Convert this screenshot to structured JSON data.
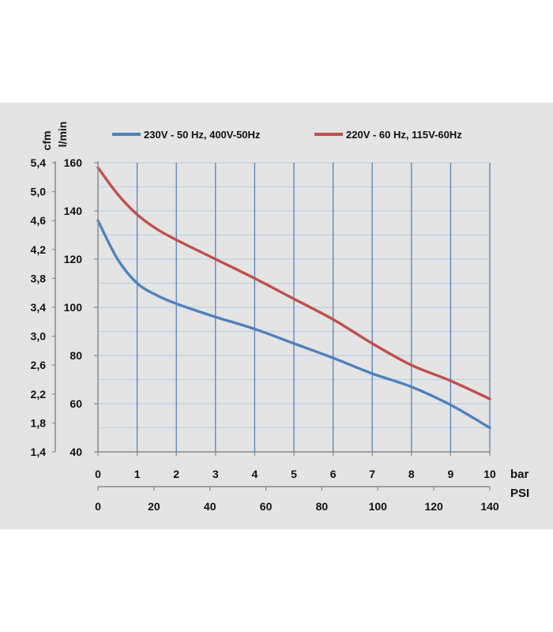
{
  "chart_data": {
    "type": "line",
    "axes": {
      "x_bar": {
        "label": "bar",
        "ticks": [
          "0",
          "1",
          "2",
          "3",
          "4",
          "5",
          "6",
          "7",
          "8",
          "9",
          "10"
        ],
        "range": [
          0,
          10
        ]
      },
      "x_psi": {
        "label": "PSI",
        "ticks": [
          "0",
          "20",
          "40",
          "60",
          "80",
          "100",
          "120",
          "140"
        ],
        "range": [
          0,
          140
        ]
      },
      "y_lmin": {
        "label": "l/min",
        "ticks": [
          "40",
          "60",
          "80",
          "100",
          "120",
          "140",
          "160"
        ],
        "range": [
          40,
          160
        ]
      },
      "y_cfm": {
        "label": "cfm",
        "ticks": [
          "1,4",
          "1,8",
          "2,2",
          "2,6",
          "3,0",
          "3,4",
          "3,8",
          "4,2",
          "4,6",
          "5,0",
          "5,4"
        ],
        "range": [
          1.4,
          5.4
        ]
      }
    },
    "grid": true,
    "legend_position": "top",
    "series": [
      {
        "name": "230V - 50 Hz, 400V-50Hz",
        "color": "#4f81bd",
        "x": [
          0,
          0.5,
          1,
          1.5,
          2,
          3,
          4,
          5,
          6,
          7,
          8,
          9,
          10
        ],
        "values": [
          136,
          120,
          110,
          105,
          101.5,
          96,
          91,
          85,
          79,
          72.5,
          67,
          59.5,
          50
        ]
      },
      {
        "name": "220V - 60 Hz, 115V-60Hz",
        "color": "#c0504d",
        "x": [
          0,
          0.5,
          1,
          1.5,
          2,
          3,
          4,
          5,
          6,
          7,
          8,
          9,
          10
        ],
        "values": [
          158,
          147,
          138.5,
          132.5,
          128,
          120,
          112,
          103.5,
          95,
          85,
          76,
          69.5,
          62
        ]
      }
    ]
  }
}
